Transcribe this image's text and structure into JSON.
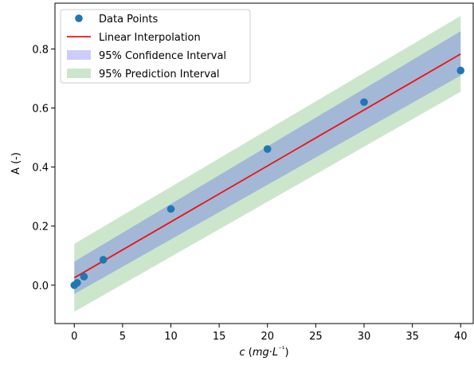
{
  "chart_data": {
    "type": "scatter",
    "title": "",
    "xlabel": "c (mg·L⁻¹)",
    "ylabel": "A (-)",
    "xlim": [
      -2,
      41.3
    ],
    "ylim": [
      -0.13,
      0.955
    ],
    "x_ticks": [
      0,
      5,
      10,
      15,
      20,
      25,
      30,
      35,
      40
    ],
    "y_ticks": [
      0.0,
      0.2,
      0.4,
      0.6,
      0.8
    ],
    "x_tick_labels": [
      "0",
      "5",
      "10",
      "15",
      "20",
      "25",
      "30",
      "35",
      "40"
    ],
    "y_tick_labels": [
      "0.0",
      "0.2",
      "0.4",
      "0.6",
      "0.8"
    ],
    "grid": false,
    "legend_position": "top-left",
    "points": {
      "name": "Data Points",
      "color": "#1f77b4",
      "x": [
        0,
        0.3,
        1,
        3,
        10,
        20,
        30,
        40
      ],
      "y": [
        0.0,
        0.008,
        0.029,
        0.086,
        0.258,
        0.461,
        0.62,
        0.727
      ]
    },
    "fit_line": {
      "name": "Linear Interpolation",
      "color": "#e41a1c",
      "x": [
        0,
        40
      ],
      "y": [
        0.025,
        0.783
      ]
    },
    "confidence_band": {
      "name": "95% Confidence Interval",
      "color": "#1f3fff",
      "x": [
        0,
        40
      ],
      "lower": [
        -0.03,
        0.71
      ],
      "upper": [
        0.08,
        0.86
      ]
    },
    "prediction_band": {
      "name": "95% Prediction Interval",
      "color": "#7fbf7f",
      "x": [
        0,
        40
      ],
      "lower": [
        -0.09,
        0.655
      ],
      "upper": [
        0.14,
        0.912
      ]
    },
    "legend": [
      {
        "label": "Data Points",
        "kind": "marker",
        "color": "#1f77b4"
      },
      {
        "label": "Linear Interpolation",
        "kind": "line",
        "color": "#e41a1c"
      },
      {
        "label": "95% Confidence Interval",
        "kind": "patch",
        "color": "#ccccff"
      },
      {
        "label": "95% Prediction Interval",
        "kind": "patch",
        "color": "#cce6cc"
      }
    ]
  }
}
